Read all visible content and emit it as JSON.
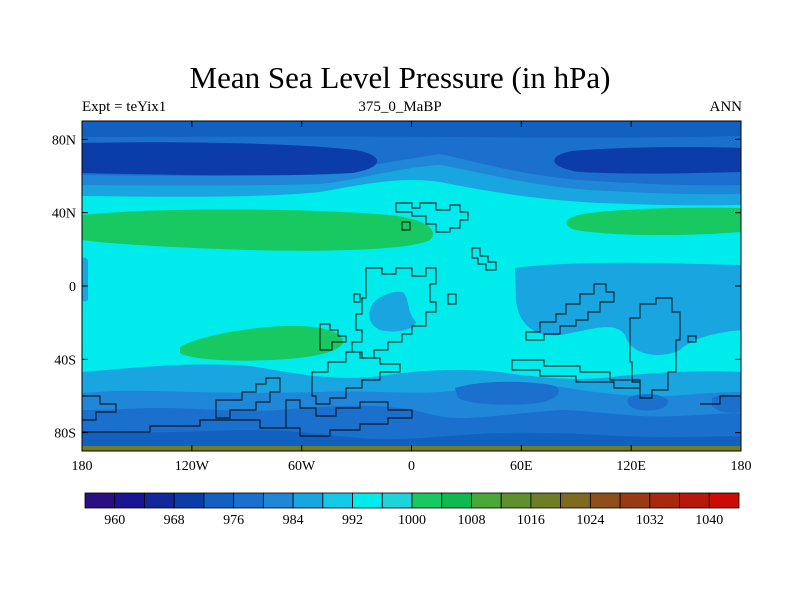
{
  "title": "Mean Sea Level Pressure (in hPa)",
  "left_label": "Expt = teYix1",
  "center_label": "375_0_MaBP",
  "right_label": "ANN",
  "chart_data": {
    "type": "heatmap",
    "variable": "Mean Sea Level Pressure",
    "units": "hPa",
    "period": "ANN",
    "lon_range": [
      -180,
      180
    ],
    "lat_range": [
      -90,
      90
    ],
    "lon_ticks": [
      -180,
      -120,
      -60,
      0,
      60,
      120,
      180
    ],
    "lon_tick_labels": [
      "180",
      "120W",
      "60W",
      "0",
      "60E",
      "120E",
      "180"
    ],
    "lat_ticks": [
      80,
      40,
      0,
      -40,
      -80
    ],
    "lat_tick_labels": [
      "80N",
      "40N",
      "0",
      "40S",
      "80S"
    ],
    "colorbar_levels": [
      956,
      960,
      964,
      968,
      972,
      976,
      980,
      984,
      988,
      992,
      996,
      1000,
      1004,
      1008,
      1012,
      1016,
      1020,
      1024,
      1028,
      1032,
      1036,
      1040,
      1044
    ],
    "colorbar_labels": [
      "960",
      "968",
      "976",
      "984",
      "992",
      "1000",
      "1008",
      "1016",
      "1024",
      "1032",
      "1040"
    ],
    "colorbar_colors": [
      "#2a0f82",
      "#1a1590",
      "#12289a",
      "#0c3ca8",
      "#1260c0",
      "#1a70cc",
      "#1f86d8",
      "#19a6e0",
      "#14c8e8",
      "#00ecec",
      "#1ed3da",
      "#18c860",
      "#10b850",
      "#4aa838",
      "#5e9030",
      "#6e7e28",
      "#7e6a20",
      "#8e5018",
      "#9a3a14",
      "#a82810",
      "#b8180c",
      "#cc0a06"
    ],
    "fills": {
      "deep_low": "#12289a",
      "low": "#1a70cc",
      "mid_low": "#1f86d8",
      "moderate": "#19a6e0",
      "background": "#00ecec",
      "high": "#18c860"
    }
  }
}
